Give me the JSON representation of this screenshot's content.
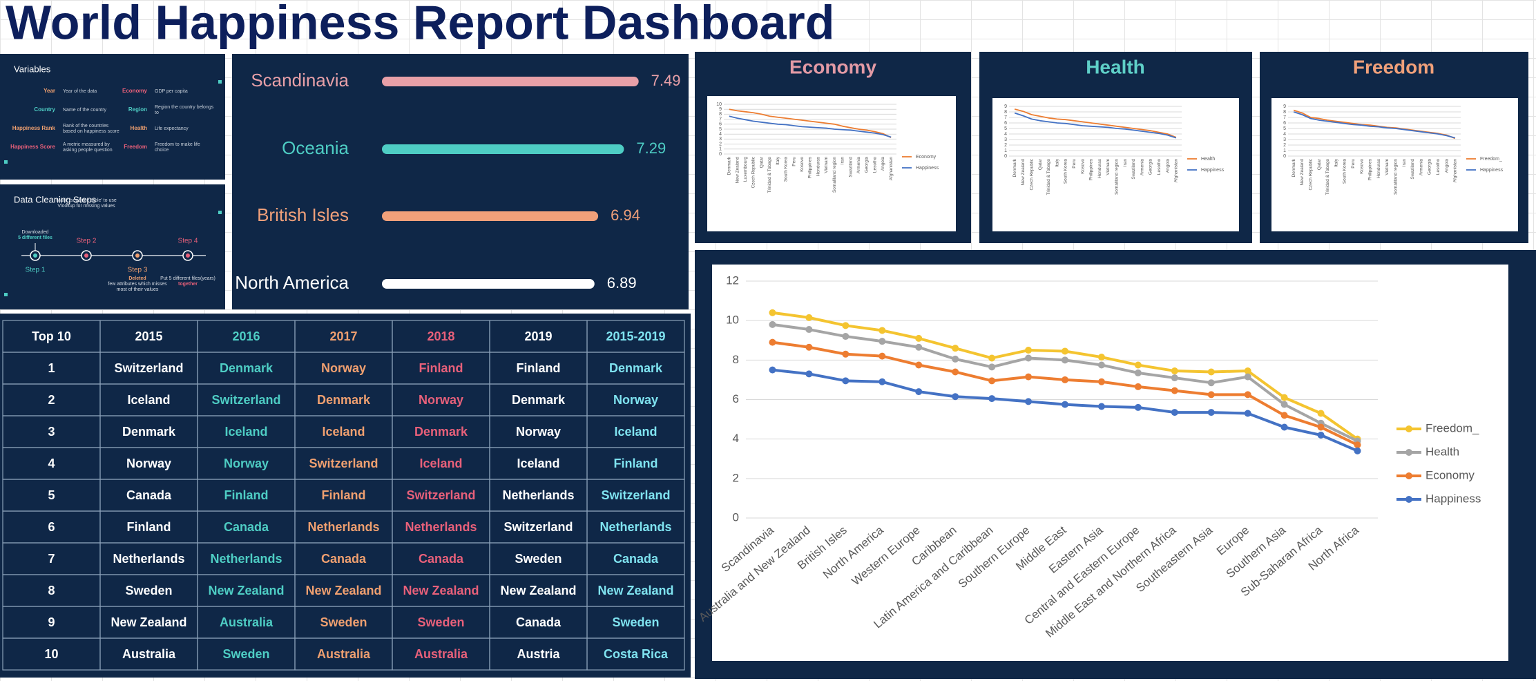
{
  "header": {
    "title": "World Happiness Report Dashboard"
  },
  "variables": {
    "title": "Variables",
    "items": [
      {
        "name": "Year",
        "desc": "Year of the data",
        "color": "#f0a070"
      },
      {
        "name": "Country",
        "desc": "Name of the country",
        "color": "#4ecdc4"
      },
      {
        "name": "Happiness Rank",
        "desc": "Rank of the countries based on happiness score",
        "color": "#f0a070"
      },
      {
        "name": "Happiness Score",
        "desc": "A metric measured by asking people question",
        "color": "#e8607a"
      },
      {
        "name": "Economy",
        "desc": "GDP per capita",
        "color": "#e8607a"
      },
      {
        "name": "Region",
        "desc": "Region the country belongs to",
        "color": "#4ecdc4"
      },
      {
        "name": "Health",
        "desc": "Life expectancy",
        "color": "#f0a070"
      },
      {
        "name": "Freedom",
        "desc": "Freedom to make life choice",
        "color": "#e8607a"
      }
    ]
  },
  "cleaning": {
    "title": "Data Cleaning Steps",
    "steps": [
      {
        "label": "Step 1",
        "color": "#4ecdc4",
        "parts": [
          "Downloaded",
          "5 different files"
        ]
      },
      {
        "label": "Step 2",
        "color": "#e8607a",
        "parts": [
          "Made 'separate table' to use Vlookup for missing values"
        ]
      },
      {
        "label": "Step 3",
        "color": "#f0a070",
        "parts": [
          "Deleted",
          "few attributes which misses most of their values"
        ]
      },
      {
        "label": "Step 4",
        "color": "#e8607a",
        "parts": [
          "Put 5 different files(years)",
          "together"
        ]
      }
    ]
  },
  "table": {
    "column_colors": [
      "#ffffff",
      "#ffffff",
      "#4ecdc4",
      "#f0a070",
      "#e8607a",
      "#ffffff",
      "#7fe3f0"
    ],
    "header": [
      "Top 10",
      "2015",
      "2016",
      "2017",
      "2018",
      "2019",
      "2015-2019"
    ],
    "rows": [
      [
        "1",
        "Switzerland",
        "Denmark",
        "Norway",
        "Finland",
        "Finland",
        "Denmark"
      ],
      [
        "2",
        "Iceland",
        "Switzerland",
        "Denmark",
        "Norway",
        "Denmark",
        "Norway"
      ],
      [
        "3",
        "Denmark",
        "Iceland",
        "Iceland",
        "Denmark",
        "Norway",
        "Iceland"
      ],
      [
        "4",
        "Norway",
        "Norway",
        "Switzerland",
        "Iceland",
        "Iceland",
        "Finland"
      ],
      [
        "5",
        "Canada",
        "Finland",
        "Finland",
        "Switzerland",
        "Netherlands",
        "Switzerland"
      ],
      [
        "6",
        "Finland",
        "Canada",
        "Netherlands",
        "Netherlands",
        "Switzerland",
        "Netherlands"
      ],
      [
        "7",
        "Netherlands",
        "Netherlands",
        "Canada",
        "Canada",
        "Sweden",
        "Canada"
      ],
      [
        "8",
        "Sweden",
        "New Zealand",
        "New Zealand",
        "New Zealand",
        "New Zealand",
        "New Zealand"
      ],
      [
        "9",
        "New Zealand",
        "Australia",
        "Sweden",
        "Sweden",
        "Canada",
        "Sweden"
      ],
      [
        "10",
        "Australia",
        "Sweden",
        "Australia",
        "Australia",
        "Austria",
        "Costa Rica"
      ]
    ]
  },
  "chart_data": [
    {
      "type": "bar",
      "orientation": "horizontal",
      "categories": [
        "Scandinavia",
        "Oceania",
        "British Isles",
        "North America"
      ],
      "values": [
        7.49,
        7.29,
        6.94,
        6.89
      ],
      "colors": [
        "#e8a0a8",
        "#4ecdc4",
        "#f0a07a",
        "#ffffff"
      ],
      "xlim": [
        4,
        8
      ]
    },
    {
      "type": "line",
      "title": "Economy",
      "title_color": "#e29aa5",
      "categories": [
        "Denmark",
        "New Zealand",
        "Luxembourg",
        "Czech Republic",
        "Qatar",
        "Trinidad & Tobago",
        "Italy",
        "South Korea",
        "Peru",
        "Kosovo",
        "Philippines",
        "Honduras",
        "Vietnam",
        "Somaliland region",
        "Iran",
        "Swaziland",
        "Armenia",
        "Georgia",
        "Lesotho",
        "Angola",
        "Afghanistan"
      ],
      "series": [
        {
          "name": "Economy",
          "color": "#ed7d31",
          "values": [
            9.0,
            8.7,
            8.5,
            8.3,
            8.0,
            7.6,
            7.4,
            7.2,
            7.0,
            6.8,
            6.6,
            6.4,
            6.2,
            6.0,
            5.6,
            5.3,
            5.0,
            4.8,
            4.5,
            4.1,
            3.3
          ]
        },
        {
          "name": "Happiness",
          "color": "#4472c4",
          "values": [
            7.6,
            7.2,
            6.9,
            6.6,
            6.4,
            6.2,
            6.0,
            5.9,
            5.7,
            5.5,
            5.4,
            5.3,
            5.2,
            5.0,
            4.9,
            4.8,
            4.6,
            4.4,
            4.2,
            3.9,
            3.4
          ]
        }
      ],
      "ylim": [
        0,
        10
      ],
      "yticks": [
        0,
        1,
        2,
        3,
        4,
        5,
        6,
        7,
        8,
        9,
        10
      ],
      "grid": true
    },
    {
      "type": "line",
      "title": "Health",
      "title_color": "#5fd0c8",
      "categories": [
        "Denmark",
        "New Zealand",
        "Czech Republic",
        "Qatar",
        "Trinidad & Tobago",
        "Italy",
        "South Korea",
        "Peru",
        "Kosovo",
        "Philippines",
        "Honduras",
        "Vietnam",
        "Somaliland region",
        "Iran",
        "Swaziland",
        "Armenia",
        "Georgia",
        "Lesotho",
        "Angola",
        "Afghanistan"
      ],
      "series": [
        {
          "name": "Health",
          "color": "#ed7d31",
          "values": [
            8.5,
            8.1,
            7.5,
            7.2,
            6.9,
            6.7,
            6.6,
            6.4,
            6.2,
            6.0,
            5.8,
            5.6,
            5.4,
            5.2,
            5.0,
            4.8,
            4.6,
            4.3,
            4.0,
            3.4
          ]
        },
        {
          "name": "Happiness",
          "color": "#4472c4",
          "values": [
            7.8,
            7.3,
            6.7,
            6.4,
            6.2,
            6.0,
            5.9,
            5.7,
            5.5,
            5.4,
            5.3,
            5.2,
            5.0,
            4.9,
            4.7,
            4.5,
            4.3,
            4.1,
            3.8,
            3.3
          ]
        }
      ],
      "ylim": [
        0,
        9
      ],
      "yticks": [
        0,
        1,
        2,
        3,
        4,
        5,
        6,
        7,
        8,
        9
      ],
      "grid": true
    },
    {
      "type": "line",
      "title": "Freedom",
      "title_color": "#f0a07a",
      "categories": [
        "Denmark",
        "New Zealand",
        "Czech Republic",
        "Qatar",
        "Trinidad & Tobago",
        "Italy",
        "South Korea",
        "Peru",
        "Kosovo",
        "Philippines",
        "Honduras",
        "Vietnam",
        "Somaliland region",
        "Iran",
        "Swaziland",
        "Armenia",
        "Georgia",
        "Lesotho",
        "Angola",
        "Afghanistan"
      ],
      "series": [
        {
          "name": "Freedom_",
          "color": "#ed7d31",
          "values": [
            8.3,
            7.8,
            7.0,
            6.8,
            6.5,
            6.3,
            6.1,
            5.9,
            5.7,
            5.6,
            5.4,
            5.2,
            5.1,
            4.9,
            4.7,
            4.5,
            4.3,
            4.1,
            3.8,
            3.2
          ]
        },
        {
          "name": "Happiness",
          "color": "#4472c4",
          "values": [
            8.0,
            7.5,
            6.8,
            6.5,
            6.3,
            6.1,
            5.9,
            5.7,
            5.6,
            5.4,
            5.3,
            5.1,
            5.0,
            4.8,
            4.6,
            4.4,
            4.2,
            4.0,
            3.7,
            3.3
          ]
        }
      ],
      "ylim": [
        0,
        9
      ],
      "yticks": [
        0,
        1,
        2,
        3,
        4,
        5,
        6,
        7,
        8,
        9
      ],
      "grid": true
    },
    {
      "type": "line",
      "markers": true,
      "categories": [
        "Scandinavia",
        "Australia and New Zealand",
        "British Isles",
        "North America",
        "Western Europe",
        "Caribbean",
        "Latin America and Caribbean",
        "Southern Europe",
        "Middle East",
        "Eastern Asia",
        "Central and Eastern Europe",
        "Middle East and Northern Africa",
        "Southeastern Asia",
        "Europe",
        "Southern Asia",
        "Sub-Saharan Africa",
        "North Africa"
      ],
      "series": [
        {
          "name": "Freedom_",
          "color": "#f4c430",
          "values": [
            10.4,
            10.15,
            9.75,
            9.5,
            9.1,
            8.6,
            8.1,
            8.5,
            8.45,
            8.15,
            7.75,
            7.45,
            7.4,
            7.45,
            6.1,
            5.3,
            4.0
          ]
        },
        {
          "name": "Health",
          "color": "#a5a5a5",
          "values": [
            9.8,
            9.55,
            9.2,
            8.95,
            8.65,
            8.05,
            7.65,
            8.1,
            8.0,
            7.75,
            7.35,
            7.1,
            6.85,
            7.15,
            5.75,
            4.8,
            3.9
          ]
        },
        {
          "name": "Economy",
          "color": "#ed7d31",
          "values": [
            8.9,
            8.65,
            8.3,
            8.2,
            7.75,
            7.4,
            6.95,
            7.15,
            7.0,
            6.9,
            6.65,
            6.45,
            6.25,
            6.25,
            5.2,
            4.6,
            3.7
          ]
        },
        {
          "name": "Happiness",
          "color": "#4472c4",
          "values": [
            7.5,
            7.3,
            6.95,
            6.9,
            6.4,
            6.15,
            6.05,
            5.9,
            5.75,
            5.65,
            5.6,
            5.35,
            5.35,
            5.3,
            4.6,
            4.2,
            3.4
          ]
        }
      ],
      "ylim": [
        0,
        12
      ],
      "yticks": [
        0,
        2,
        4,
        6,
        8,
        10,
        12
      ],
      "grid": true
    }
  ]
}
